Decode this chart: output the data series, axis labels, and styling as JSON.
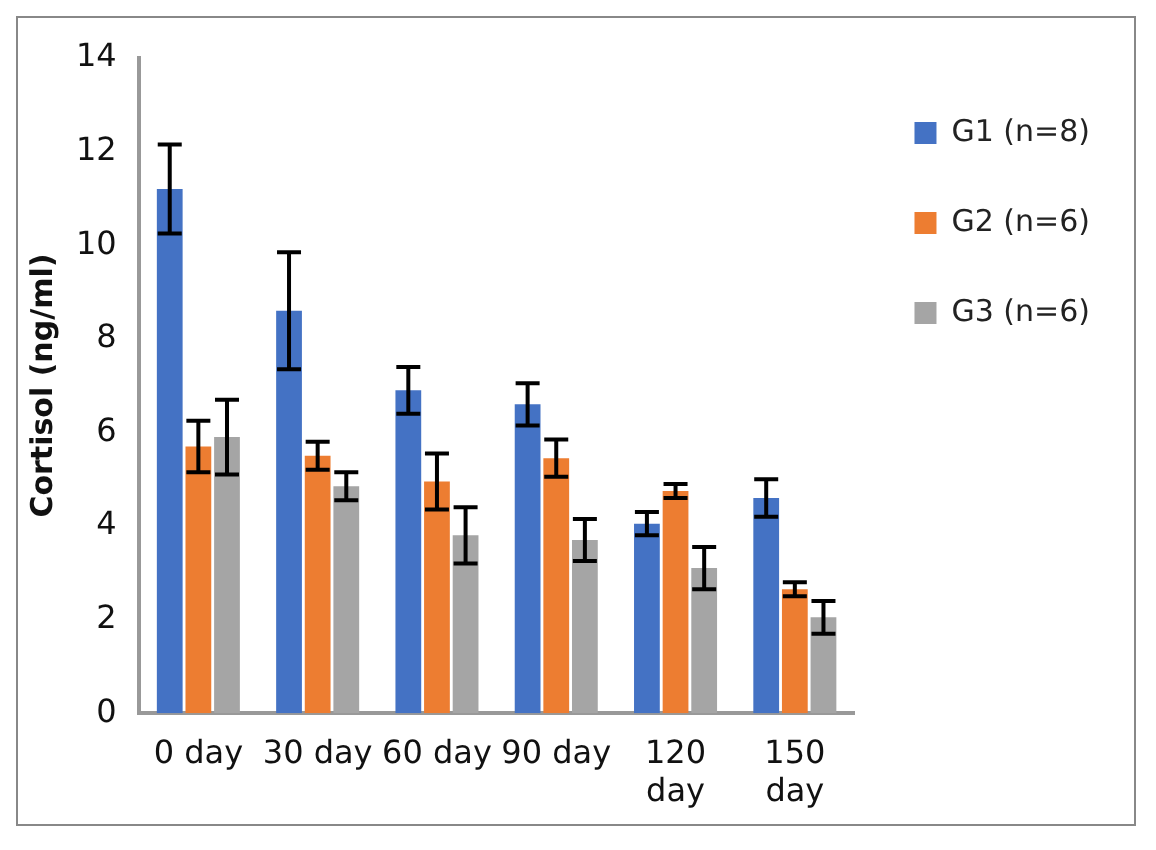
{
  "chart_data": {
    "type": "bar",
    "ylabel": "Cortisol (ng/ml)",
    "categories": [
      "0 day",
      "30 day",
      "60 day",
      "90 day",
      "120 day",
      "150 day"
    ],
    "series": [
      {
        "name": "G1 (n=8)",
        "color": "#4472c4",
        "values": [
          11.2,
          8.6,
          6.9,
          6.6,
          4.05,
          4.6
        ],
        "errors": [
          0.95,
          1.25,
          0.5,
          0.45,
          0.25,
          0.4
        ]
      },
      {
        "name": "G2 (n=6)",
        "color": "#ed7d31",
        "values": [
          5.7,
          5.5,
          4.95,
          5.45,
          4.75,
          2.65
        ],
        "errors": [
          0.55,
          0.3,
          0.6,
          0.4,
          0.15,
          0.15
        ]
      },
      {
        "name": "G3 (n=6)",
        "color": "#a5a5a5",
        "values": [
          5.9,
          4.85,
          3.8,
          3.7,
          3.1,
          2.05
        ],
        "errors": [
          0.8,
          0.3,
          0.6,
          0.45,
          0.45,
          0.35
        ]
      }
    ],
    "ylim": [
      0,
      14
    ],
    "yticks": [
      0,
      2,
      4,
      6,
      8,
      10,
      12,
      14
    ],
    "grid": false,
    "legend": "top right"
  }
}
